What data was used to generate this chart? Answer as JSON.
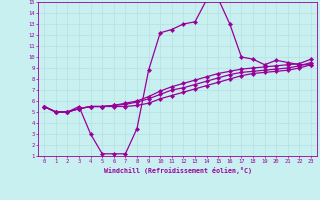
{
  "xlabel": "Windchill (Refroidissement éolien,°C)",
  "xlim": [
    -0.5,
    23.5
  ],
  "ylim": [
    1,
    15
  ],
  "xticks": [
    0,
    1,
    2,
    3,
    4,
    5,
    6,
    7,
    8,
    9,
    10,
    11,
    12,
    13,
    14,
    15,
    16,
    17,
    18,
    19,
    20,
    21,
    22,
    23
  ],
  "yticks": [
    1,
    2,
    3,
    4,
    5,
    6,
    7,
    8,
    9,
    10,
    11,
    12,
    13,
    14,
    15
  ],
  "background_color": "#c8f0f0",
  "line_color": "#990099",
  "grid_color": "#b8e0e0",
  "line_width": 0.9,
  "marker_size": 2.2,
  "lines": [
    [
      5.5,
      5.0,
      5.0,
      5.5,
      3.0,
      1.2,
      1.2,
      1.2,
      3.5,
      8.8,
      12.2,
      12.5,
      13.0,
      13.2,
      15.2,
      15.3,
      13.0,
      10.0,
      9.8,
      9.3,
      9.7,
      9.5,
      9.3,
      9.3
    ],
    [
      5.5,
      5.0,
      5.0,
      5.3,
      5.5,
      5.5,
      5.5,
      5.5,
      5.6,
      5.8,
      6.2,
      6.5,
      6.8,
      7.1,
      7.4,
      7.7,
      8.0,
      8.3,
      8.5,
      8.6,
      8.7,
      8.8,
      9.0,
      9.3
    ],
    [
      5.5,
      5.0,
      5.0,
      5.3,
      5.5,
      5.5,
      5.6,
      5.7,
      5.9,
      6.2,
      6.6,
      7.0,
      7.2,
      7.5,
      7.8,
      8.1,
      8.4,
      8.6,
      8.7,
      8.8,
      8.9,
      9.0,
      9.2,
      9.5
    ],
    [
      5.5,
      5.0,
      5.0,
      5.3,
      5.5,
      5.5,
      5.6,
      5.8,
      6.0,
      6.4,
      6.9,
      7.3,
      7.6,
      7.9,
      8.2,
      8.5,
      8.7,
      8.9,
      9.0,
      9.1,
      9.2,
      9.3,
      9.4,
      9.8
    ]
  ]
}
